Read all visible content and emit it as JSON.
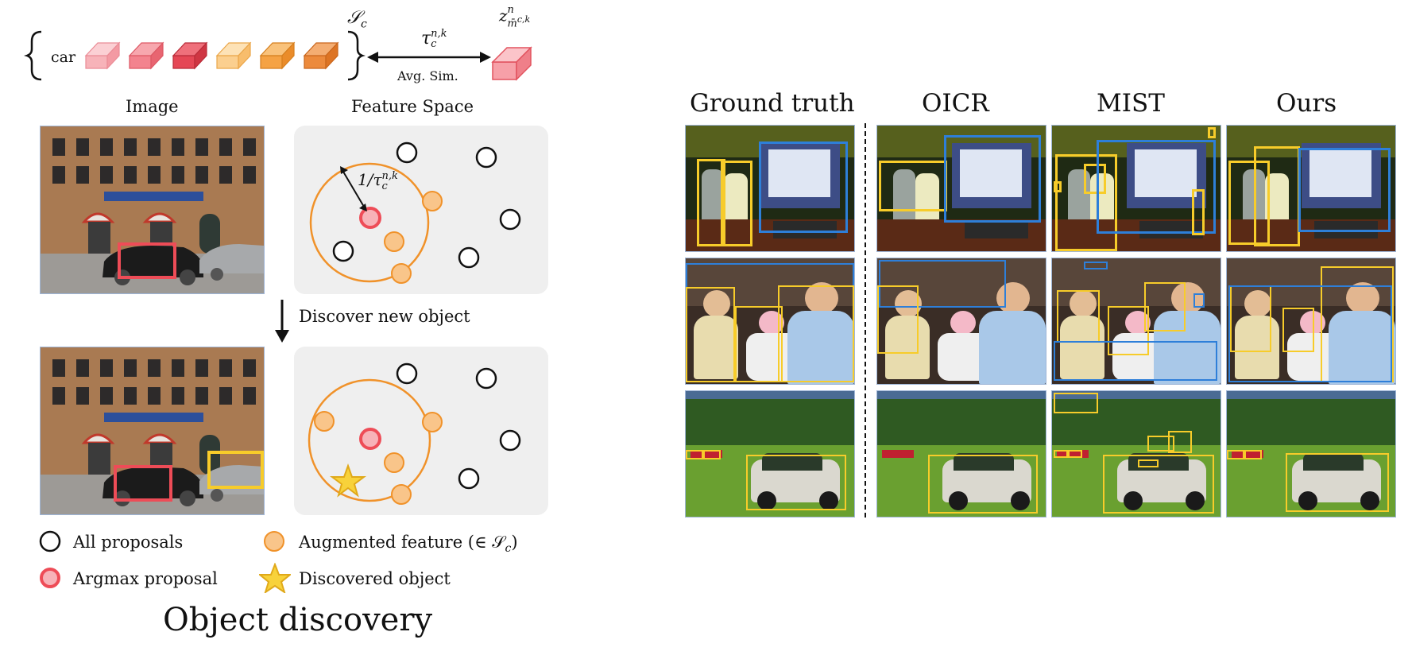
{
  "top_row": {
    "class_label": "car",
    "set_label": "𝒮",
    "set_subscript": "c",
    "tau_label": "τ",
    "tau_superscript": "n,k",
    "tau_subscript": "c",
    "avg_sim_label": "Avg. Sim.",
    "z_label": "z",
    "z_superscript": "n",
    "z_subscript": "m̄",
    "z_sub_superscript": "c,k"
  },
  "left_headers": {
    "image": "Image",
    "feature_space": "Feature Space"
  },
  "radius_label": {
    "prefix": "1/τ",
    "superscript": "n,k",
    "subscript": "c"
  },
  "arrow_label": "Discover new object",
  "legend": {
    "all_proposals": "All proposals",
    "argmax_proposal": "Argmax proposal",
    "augmented_prefix": "Augmented feature (∈ 𝒮",
    "augmented_subscript": "c",
    "augmented_suffix": ")",
    "discovered_object": "Discovered object"
  },
  "main_title": "Object discovery",
  "comparison": {
    "columns": [
      "Ground truth",
      "OICR",
      "MIST",
      "Ours"
    ]
  },
  "colors": {
    "box_red": "#ee4c57",
    "box_yellow": "#f7cc2a",
    "orange": "#f0922a",
    "orange_fill": "#f9c58a",
    "pink_fill": "#f7b2b8",
    "panel_gray": "#efefef",
    "vlm_blue": "#2e7fd9"
  }
}
